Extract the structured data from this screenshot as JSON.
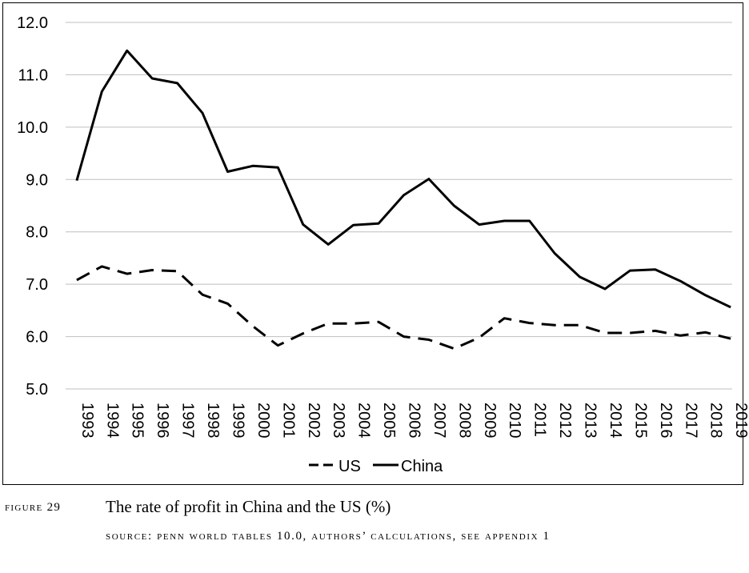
{
  "chart_data": {
    "type": "line",
    "categories": [
      "1993",
      "1994",
      "1995",
      "1996",
      "1997",
      "1998",
      "1999",
      "2000",
      "2001",
      "2002",
      "2003",
      "2004",
      "2005",
      "2006",
      "2007",
      "2008",
      "2009",
      "2010",
      "2011",
      "2012",
      "2013",
      "2014",
      "2015",
      "2016",
      "2017",
      "2018",
      "2019"
    ],
    "series": [
      {
        "name": "US",
        "style": "dashed",
        "values": [
          7.08,
          7.34,
          7.2,
          7.27,
          7.25,
          6.8,
          6.63,
          6.2,
          5.83,
          6.06,
          6.25,
          6.25,
          6.28,
          6.0,
          5.94,
          5.77,
          5.98,
          6.35,
          6.26,
          6.22,
          6.22,
          6.07,
          6.07,
          6.11,
          6.02,
          6.08,
          5.96
        ]
      },
      {
        "name": "China",
        "style": "solid",
        "values": [
          8.98,
          10.68,
          11.46,
          10.93,
          10.84,
          10.27,
          9.15,
          9.26,
          9.23,
          8.14,
          7.76,
          8.13,
          8.16,
          8.7,
          9.01,
          8.5,
          8.14,
          8.21,
          8.21,
          7.59,
          7.14,
          6.91,
          7.26,
          7.28,
          7.06,
          6.79,
          6.56
        ]
      }
    ],
    "yticks": [
      "5.0",
      "6.0",
      "7.0",
      "8.0",
      "9.0",
      "10.0",
      "11.0",
      "12.0"
    ],
    "ylim": [
      5,
      12
    ],
    "grid": "horizontal",
    "legend": "bottom-center",
    "colors": {
      "line": "#000000",
      "grid": "#bfbfbf",
      "border": "#000000"
    }
  },
  "caption": {
    "figure_label": "FIGURE 29",
    "title": "The rate of profit in China and the US (%)",
    "source": "SOURCE: PENN WORLD TABLES 10.0, AUTHORS’ CALCULATIONS, SEE APPENDIX 1"
  }
}
